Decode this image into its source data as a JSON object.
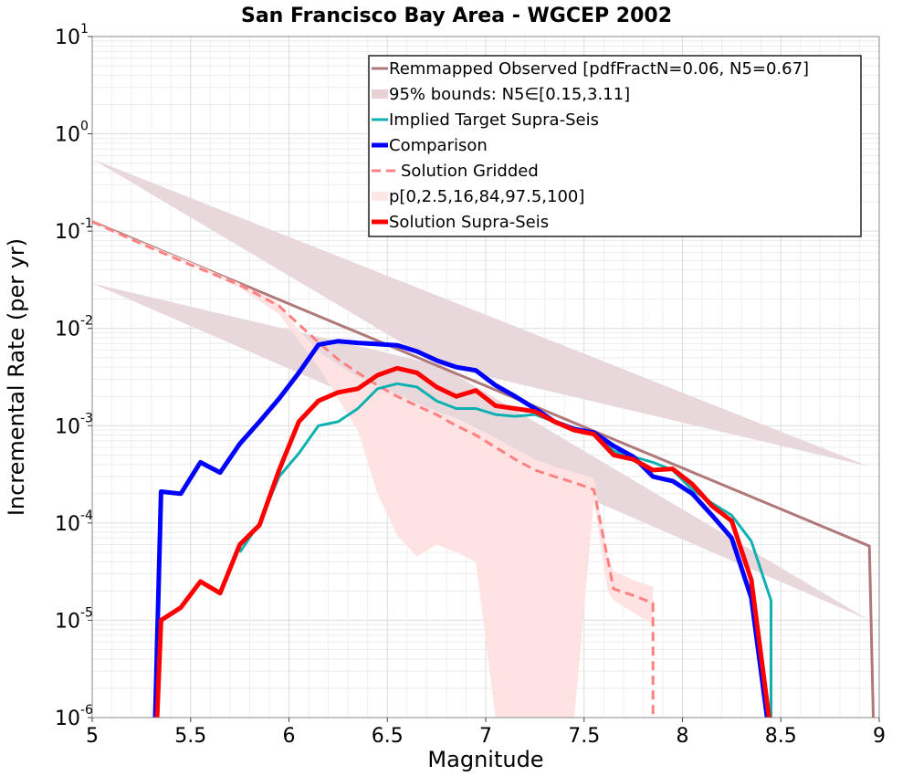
{
  "chart_data": {
    "type": "line",
    "title": "San Francisco Bay Area - WGCEP 2002",
    "xlabel": "Magnitude",
    "ylabel": "Incremental Rate (per yr)",
    "xlim": [
      5,
      9
    ],
    "ylim_log10": [
      -6,
      1
    ],
    "yscale": "log",
    "x_ticks": [
      "5",
      "5.5",
      "6",
      "6.5",
      "7",
      "7.5",
      "8",
      "8.5",
      "9"
    ],
    "y_tick_base": "10",
    "y_tick_exponents": [
      "1",
      "0",
      "-1",
      "-2",
      "-3",
      "-4",
      "-5",
      "-6"
    ],
    "legend_position": "top-right",
    "legend": [
      {
        "label": "Remmapped Observed [pdfFractN=0.06, N5=0.67]",
        "style": "line",
        "color": "#b07878"
      },
      {
        "label": "95% bounds: N5∈[0.15,3.11]",
        "style": "band",
        "color": "#e8d0d4"
      },
      {
        "label": "Implied Target Supra-Seis",
        "style": "line",
        "color": "#10b0b0"
      },
      {
        "label": "Comparison",
        "style": "thick-line",
        "color": "#0000ff"
      },
      {
        "label": "Solution Gridded",
        "style": "dashed",
        "color": "#ff8080"
      },
      {
        "label": "p[0,2.5,16,84,97.5,100]",
        "style": "band",
        "color": "#ffe6e6"
      },
      {
        "label": "Solution Supra-Seis",
        "style": "thick-line",
        "color": "#ff0000"
      }
    ],
    "series": [
      {
        "name": "95% bounds band",
        "kind": "band",
        "color": "#e8d8dc",
        "upper": [
          [
            5,
            0.55
          ],
          [
            8.95,
            0.00038
          ]
        ],
        "lower": [
          [
            5,
            0.029
          ],
          [
            8.95,
            1e-05
          ]
        ]
      },
      {
        "name": "Remmapped Observed",
        "kind": "line",
        "color": "#b07878",
        "width": 3,
        "points": [
          [
            5,
            0.125
          ],
          [
            8.95,
            5.8e-05
          ],
          [
            8.97,
            1e-06
          ]
        ]
      },
      {
        "name": "Solution Gridded spread",
        "kind": "band",
        "color": "#ffe2e2",
        "upper": [
          [
            5,
            0.125
          ],
          [
            5.5,
            0.048
          ],
          [
            5.75,
            0.029
          ],
          [
            5.95,
            0.018
          ],
          [
            6.05,
            0.0095
          ],
          [
            6.15,
            0.0058
          ],
          [
            6.25,
            0.0042
          ],
          [
            6.35,
            0.0032
          ],
          [
            6.45,
            0.0026
          ],
          [
            6.55,
            0.0021
          ],
          [
            6.65,
            0.0017
          ],
          [
            6.75,
            0.0014
          ],
          [
            6.85,
            0.0012
          ],
          [
            6.95,
            0.00095
          ],
          [
            7.05,
            0.00075
          ],
          [
            7.15,
            0.00058
          ],
          [
            7.25,
            0.00045
          ],
          [
            7.35,
            0.00038
          ],
          [
            7.45,
            0.00033
          ],
          [
            7.55,
            0.00029
          ],
          [
            7.62,
            4.5e-05
          ],
          [
            7.65,
            3.2e-05
          ],
          [
            7.75,
            2.6e-05
          ],
          [
            7.85,
            2.2e-05
          ]
        ],
        "lower": [
          [
            7.85,
            9e-06
          ],
          [
            7.75,
            1.2e-05
          ],
          [
            7.65,
            1.6e-05
          ],
          [
            7.62,
            2e-05
          ],
          [
            7.55,
            0.00017
          ],
          [
            7.45,
            1e-06
          ],
          [
            7.05,
            1e-06
          ],
          [
            6.95,
            4e-05
          ],
          [
            6.85,
            5e-05
          ],
          [
            6.75,
            6e-05
          ],
          [
            6.65,
            4.5e-05
          ],
          [
            6.55,
            7.5e-05
          ],
          [
            6.45,
            0.0002
          ],
          [
            6.35,
            0.0009
          ],
          [
            6.25,
            0.0019
          ],
          [
            6.15,
            0.004
          ],
          [
            6.05,
            0.0075
          ],
          [
            5.95,
            0.014
          ],
          [
            5.75,
            0.026
          ],
          [
            5.5,
            0.046
          ],
          [
            5,
            0.12
          ]
        ]
      },
      {
        "name": "Solution Gridded",
        "kind": "dashed",
        "color": "#ff8080",
        "width": 3,
        "points": [
          [
            5,
            0.125
          ],
          [
            5.25,
            0.074
          ],
          [
            5.5,
            0.045
          ],
          [
            5.75,
            0.028
          ],
          [
            5.95,
            0.017
          ],
          [
            6.05,
            0.011
          ],
          [
            6.15,
            0.0072
          ],
          [
            6.25,
            0.0048
          ],
          [
            6.35,
            0.0035
          ],
          [
            6.45,
            0.0026
          ],
          [
            6.55,
            0.002
          ],
          [
            6.65,
            0.0016
          ],
          [
            6.75,
            0.0013
          ],
          [
            6.85,
            0.001
          ],
          [
            6.95,
            0.0008
          ],
          [
            7.05,
            0.0006
          ],
          [
            7.15,
            0.00045
          ],
          [
            7.25,
            0.00035
          ],
          [
            7.35,
            0.0003
          ],
          [
            7.45,
            0.00026
          ],
          [
            7.55,
            0.00022
          ],
          [
            7.65,
            2.1e-05
          ],
          [
            7.75,
            1.8e-05
          ],
          [
            7.85,
            1.5e-05
          ],
          [
            7.85,
            1e-06
          ]
        ]
      },
      {
        "name": "Implied Target Supra-Seis",
        "kind": "line",
        "color": "#10b0b0",
        "width": 3,
        "points": [
          [
            5.75,
            5e-05
          ],
          [
            5.85,
            0.0001
          ],
          [
            5.95,
            0.0003
          ],
          [
            6.05,
            0.00052
          ],
          [
            6.15,
            0.001
          ],
          [
            6.25,
            0.0011
          ],
          [
            6.35,
            0.0015
          ],
          [
            6.45,
            0.0024
          ],
          [
            6.55,
            0.0027
          ],
          [
            6.65,
            0.0025
          ],
          [
            6.75,
            0.0018
          ],
          [
            6.85,
            0.0015
          ],
          [
            6.95,
            0.0015
          ],
          [
            7.05,
            0.0013
          ],
          [
            7.15,
            0.00125
          ],
          [
            7.25,
            0.0013
          ],
          [
            7.35,
            0.0011
          ],
          [
            7.45,
            0.00095
          ],
          [
            7.55,
            0.00085
          ],
          [
            7.65,
            0.00055
          ],
          [
            7.75,
            0.00048
          ],
          [
            7.85,
            0.00042
          ],
          [
            7.95,
            0.00035
          ],
          [
            8.05,
            0.00022
          ],
          [
            8.15,
            0.00016
          ],
          [
            8.25,
            0.00012
          ],
          [
            8.35,
            6.5e-05
          ],
          [
            8.45,
            1.6e-05
          ],
          [
            8.45,
            1e-06
          ]
        ]
      },
      {
        "name": "Comparison",
        "kind": "line",
        "color": "#0000ff",
        "width": 5,
        "points": [
          [
            5.32,
            1e-06
          ],
          [
            5.35,
            0.00021
          ],
          [
            5.45,
            0.0002
          ],
          [
            5.55,
            0.00042
          ],
          [
            5.65,
            0.00033
          ],
          [
            5.75,
            0.00065
          ],
          [
            5.85,
            0.0011
          ],
          [
            5.95,
            0.0019
          ],
          [
            6.05,
            0.0035
          ],
          [
            6.15,
            0.0068
          ],
          [
            6.25,
            0.0074
          ],
          [
            6.35,
            0.0071
          ],
          [
            6.45,
            0.0069
          ],
          [
            6.55,
            0.0067
          ],
          [
            6.65,
            0.0058
          ],
          [
            6.75,
            0.0047
          ],
          [
            6.85,
            0.004
          ],
          [
            6.95,
            0.0037
          ],
          [
            7.05,
            0.0026
          ],
          [
            7.15,
            0.002
          ],
          [
            7.25,
            0.0015
          ],
          [
            7.35,
            0.0011
          ],
          [
            7.45,
            0.00092
          ],
          [
            7.55,
            0.00085
          ],
          [
            7.65,
            0.00062
          ],
          [
            7.75,
            0.00048
          ],
          [
            7.85,
            0.0003
          ],
          [
            7.95,
            0.00027
          ],
          [
            8.05,
            0.0002
          ],
          [
            8.15,
            0.00012
          ],
          [
            8.25,
            7e-05
          ],
          [
            8.35,
            1.7e-05
          ],
          [
            8.43,
            1e-06
          ]
        ]
      },
      {
        "name": "Solution Supra-Seis",
        "kind": "line",
        "color": "#ff0000",
        "width": 5,
        "points": [
          [
            5.33,
            1e-06
          ],
          [
            5.35,
            1e-05
          ],
          [
            5.45,
            1.35e-05
          ],
          [
            5.55,
            2.5e-05
          ],
          [
            5.65,
            1.9e-05
          ],
          [
            5.75,
            6e-05
          ],
          [
            5.85,
            9.5e-05
          ],
          [
            5.95,
            0.00035
          ],
          [
            6.05,
            0.0011
          ],
          [
            6.15,
            0.0018
          ],
          [
            6.25,
            0.0022
          ],
          [
            6.35,
            0.0024
          ],
          [
            6.45,
            0.0033
          ],
          [
            6.55,
            0.0039
          ],
          [
            6.65,
            0.0035
          ],
          [
            6.75,
            0.0025
          ],
          [
            6.85,
            0.002
          ],
          [
            6.95,
            0.0023
          ],
          [
            7.05,
            0.0016
          ],
          [
            7.15,
            0.0015
          ],
          [
            7.25,
            0.0014
          ],
          [
            7.35,
            0.0011
          ],
          [
            7.45,
            0.0009
          ],
          [
            7.55,
            0.00082
          ],
          [
            7.65,
            0.0005
          ],
          [
            7.75,
            0.00045
          ],
          [
            7.85,
            0.00035
          ],
          [
            7.95,
            0.00036
          ],
          [
            8.05,
            0.00025
          ],
          [
            8.15,
            0.00015
          ],
          [
            8.25,
            0.000105
          ],
          [
            8.35,
            2.6e-05
          ],
          [
            8.44,
            1e-06
          ]
        ]
      }
    ]
  }
}
